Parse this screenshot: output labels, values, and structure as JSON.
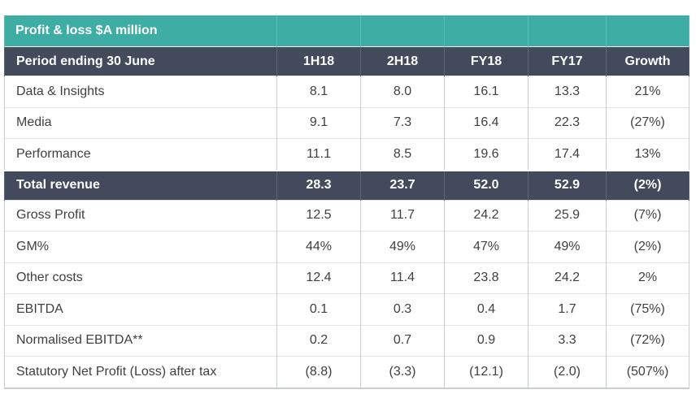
{
  "title": "Profit & loss $A million",
  "header": {
    "label": "Period ending 30 June",
    "columns": [
      "1H18",
      "2H18",
      "FY18",
      "FY17",
      "Growth"
    ]
  },
  "rows": [
    {
      "label": "Data & Insights",
      "values": [
        "8.1",
        "8.0",
        "16.1",
        "13.3",
        "21%"
      ]
    },
    {
      "label": "Media",
      "values": [
        "9.1",
        "7.3",
        "16.4",
        "22.3",
        "(27%)"
      ]
    },
    {
      "label": "Performance",
      "values": [
        "11.1",
        "8.5",
        "19.6",
        "17.4",
        "13%"
      ]
    },
    {
      "label": "Total revenue",
      "values": [
        "28.3",
        "23.7",
        "52.0",
        "52.9",
        "(2%)"
      ],
      "total": true
    },
    {
      "label": "Gross Profit",
      "values": [
        "12.5",
        "11.7",
        "24.2",
        "25.9",
        "(7%)"
      ]
    },
    {
      "label": "GM%",
      "values": [
        "44%",
        "49%",
        "47%",
        "49%",
        "(2%)"
      ]
    },
    {
      "label": "Other costs",
      "values": [
        "12.4",
        "11.4",
        "23.8",
        "24.2",
        "2%"
      ]
    },
    {
      "label": "EBITDA",
      "values": [
        "0.1",
        "0.3",
        "0.4",
        "1.7",
        "(75%)"
      ]
    },
    {
      "label": "Normalised EBITDA**",
      "values": [
        "0.2",
        "0.7",
        "0.9",
        "3.3",
        "(72%)"
      ]
    },
    {
      "label": "Statutory Net Profit (Loss) after tax",
      "values": [
        "(8.8)",
        "(3.3)",
        "(12.1)",
        "(2.0)",
        "(507%)"
      ]
    }
  ],
  "colors": {
    "title_bg": "#3eada3",
    "header_bg": "#424a5b",
    "text": "#404040"
  }
}
